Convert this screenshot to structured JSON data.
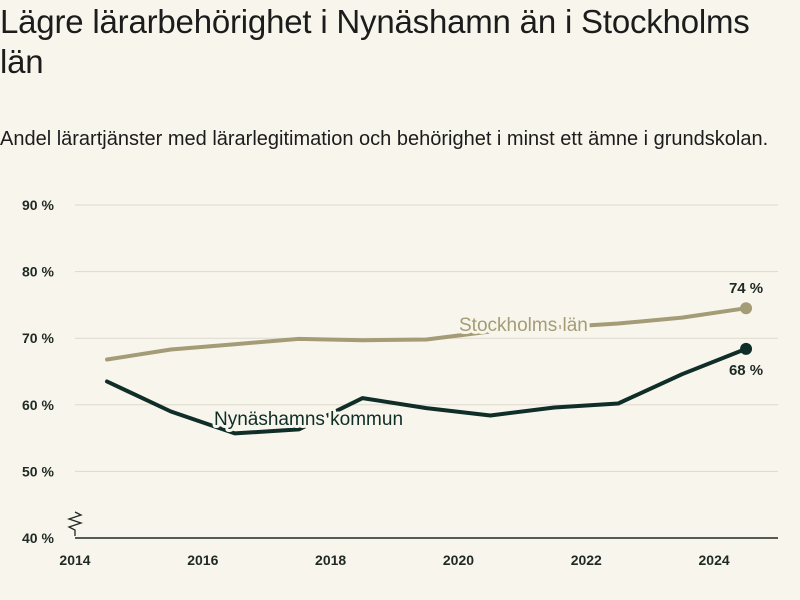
{
  "header": {
    "title": "Lägre lärarbehörighet i Nynäshamn än i Stockholms län",
    "subtitle": "Andel lärartjänster med lärarlegitimation och behörighet i minst ett ämne i grundskolan."
  },
  "chart_data": {
    "type": "line",
    "title": "Lägre lärarbehörighet i Nynäshamn än i Stockholms län",
    "subtitle": "Andel lärartjänster med lärarlegitimation och behörighet i minst ett ämne i grundskolan.",
    "xlabel": "",
    "ylabel": "",
    "xlim": [
      2014,
      2025
    ],
    "ylim": [
      40,
      90
    ],
    "x_ticks": [
      "2014",
      "2016",
      "2018",
      "2020",
      "2022",
      "2024"
    ],
    "y_ticks": [
      "40 %",
      "50 %",
      "60 %",
      "70 %",
      "80 %",
      "90 %"
    ],
    "grid": true,
    "y_axis_break": true,
    "x": [
      2014.5,
      2015.5,
      2016.5,
      2017.5,
      2018.5,
      2019.5,
      2020.5,
      2021.5,
      2022.5,
      2023.5,
      2024.5
    ],
    "series": [
      {
        "name": "Stockholms län",
        "color": "#a49c76",
        "values": [
          66.8,
          68.3,
          69.1,
          69.9,
          69.7,
          69.8,
          71.0,
          71.6,
          72.2,
          73.1,
          74.5
        ],
        "end_label": "74 %"
      },
      {
        "name": "Nynäshamns kommun",
        "color": "#0f2e28",
        "values": [
          63.5,
          59.0,
          55.7,
          56.3,
          61.0,
          59.5,
          58.4,
          59.6,
          60.2,
          64.6,
          68.4
        ],
        "end_label": "68 %"
      }
    ]
  }
}
